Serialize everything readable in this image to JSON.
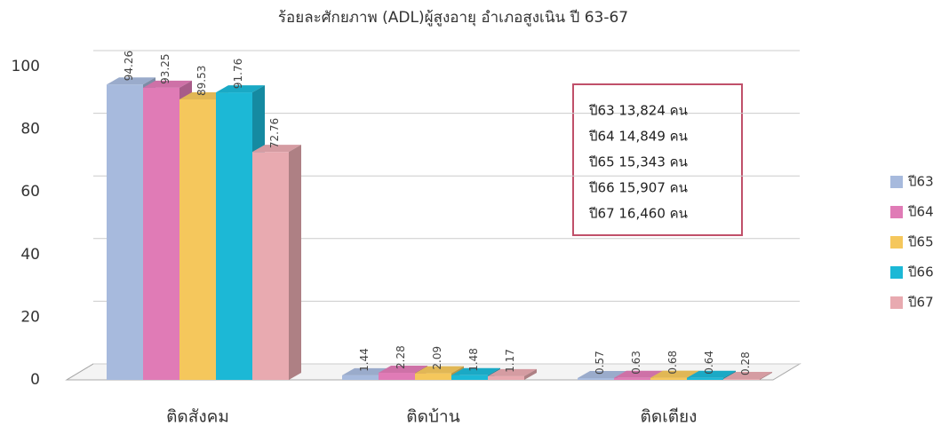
{
  "chart_data": {
    "type": "bar3d",
    "title": "ร้อยละศักยภาพ (ADL)ผู้สูงอายุ อำเภอสูงเนิน ปี 63-67",
    "categories": [
      "ติดสังคม",
      "ติดบ้าน",
      "ติดเตียง"
    ],
    "series": [
      {
        "name": "ปี63",
        "color": "#a7badd",
        "values": [
          94.26,
          1.44,
          0.57
        ]
      },
      {
        "name": "ปี64",
        "color": "#e07bb6",
        "values": [
          93.25,
          2.28,
          0.63
        ]
      },
      {
        "name": "ปี65",
        "color": "#f5c75c",
        "values": [
          89.53,
          2.09,
          0.68
        ]
      },
      {
        "name": "ปี66",
        "color": "#1cb8d6",
        "values": [
          91.76,
          1.48,
          0.64
        ]
      },
      {
        "name": "ปี67",
        "color": "#e8aab0",
        "values": [
          72.76,
          1.17,
          0.28
        ]
      }
    ],
    "annotations": [
      "ปี63 13,824 คน",
      "ปี64 14,849 คน",
      "ปี65 15,343 คน",
      "ปี66 15,907 คน",
      "ปี67 16,460 คน"
    ],
    "ylim": [
      0,
      100
    ],
    "yticks": [
      0,
      20,
      40,
      60,
      80,
      100
    ],
    "grid": true,
    "legend": "right"
  }
}
